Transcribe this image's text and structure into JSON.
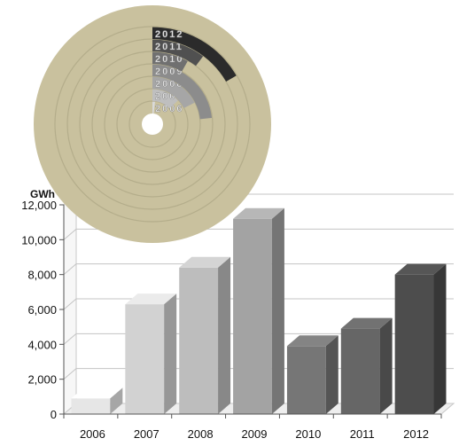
{
  "chart_data": [
    {
      "type": "bar",
      "ylabel": "GWh",
      "categories": [
        "2006",
        "2007",
        "2008",
        "2009",
        "2010",
        "2011",
        "2012"
      ],
      "values": [
        900,
        6300,
        8400,
        11200,
        3900,
        4900,
        8000
      ],
      "ylim": [
        0,
        12000
      ],
      "yticks": [
        0,
        2000,
        4000,
        6000,
        8000,
        10000,
        12000
      ],
      "ytick_labels": [
        "0",
        "2,000",
        "4,000",
        "6,000",
        "8,000",
        "10,000",
        "12,000"
      ],
      "grid": true,
      "style": "3d",
      "colors": [
        "#e6e6e6",
        "#d2d2d2",
        "#bdbdbd",
        "#a3a3a3",
        "#767676",
        "#666666",
        "#4d4d4d"
      ]
    },
    {
      "type": "radial-bar",
      "rings": [
        {
          "label": "2006",
          "value": 900
        },
        {
          "label": "2007",
          "value": 6300
        },
        {
          "label": "2008",
          "value": 8400
        },
        {
          "label": "2009",
          "value": 11200
        },
        {
          "label": "2010",
          "value": 3900
        },
        {
          "label": "2011",
          "value": 4900
        },
        {
          "label": "2012",
          "value": 8000
        }
      ],
      "full_circle_value": 48000,
      "background_color": "#c9c19e",
      "colors": [
        "#d9d9d9",
        "#bfbfbf",
        "#a6a6a6",
        "#8c8c8c",
        "#707070",
        "#505050",
        "#2b2b2b"
      ]
    }
  ]
}
